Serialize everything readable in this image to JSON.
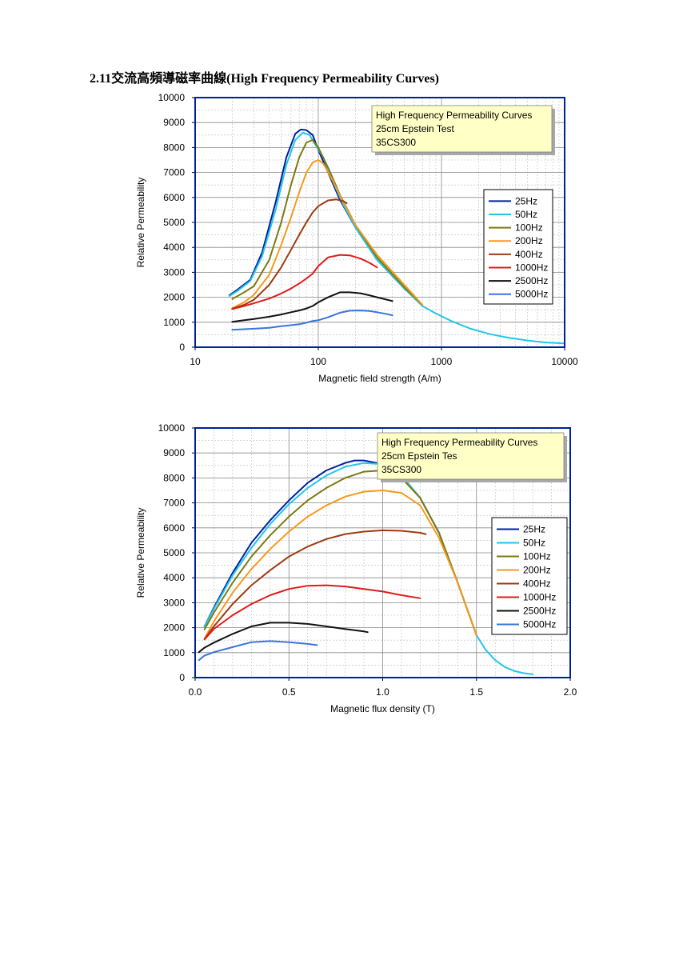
{
  "heading": "2.11交流高頻導磁率曲線(High Frequency Permeability Curves)",
  "colors": {
    "25Hz": "#00209f",
    "50Hz": "#22c6e8",
    "100Hz": "#7b7b12",
    "200Hz": "#f59a1d",
    "400Hz": "#9b3b10",
    "1000Hz": "#e01b1b",
    "2500Hz": "#111111",
    "5000Hz": "#3a74e0",
    "frame": "#00209f",
    "note_bg": "#ffffc6",
    "note_shadow": "#a8a8a8"
  },
  "chart_data": [
    {
      "type": "line",
      "note": [
        "High Frequency Permeability Curves",
        "25cm Epstein Test",
        "35CS300"
      ],
      "xlabel": "Magnetic field strength (A/m)",
      "ylabel": "Relative Permeability",
      "xscale": "log",
      "xlim": [
        10,
        10000
      ],
      "ylim": [
        0,
        10000
      ],
      "xticks": [
        10,
        100,
        1000,
        10000
      ],
      "yticks": [
        0,
        1000,
        2000,
        3000,
        4000,
        5000,
        6000,
        7000,
        8000,
        9000,
        10000
      ],
      "grid": true,
      "legend_position": "right",
      "series": [
        {
          "name": "25Hz",
          "x": [
            19,
            22,
            28,
            35,
            45,
            55,
            65,
            72,
            80,
            90,
            100,
            120,
            150,
            200,
            300,
            500,
            700
          ],
          "y": [
            2080,
            2300,
            2700,
            3800,
            5800,
            7600,
            8550,
            8720,
            8700,
            8500,
            7900,
            7000,
            5900,
            4800,
            3500,
            2350,
            1700
          ]
        },
        {
          "name": "50Hz",
          "x": [
            19,
            22,
            28,
            35,
            45,
            55,
            65,
            75,
            85,
            95,
            110,
            130,
            160,
            200,
            300,
            500,
            700,
            900,
            1200,
            1700,
            2500,
            3500,
            5000,
            7000,
            10000
          ],
          "y": [
            2050,
            2250,
            2650,
            3650,
            5500,
            7300,
            8300,
            8600,
            8500,
            8100,
            7600,
            6700,
            5700,
            4800,
            3500,
            2350,
            1650,
            1350,
            1050,
            750,
            520,
            380,
            270,
            190,
            150
          ]
        },
        {
          "name": "100Hz",
          "x": [
            20,
            25,
            30,
            40,
            50,
            60,
            70,
            80,
            90,
            100,
            120,
            150,
            200,
            300,
            500,
            700
          ],
          "y": [
            1930,
            2200,
            2450,
            3500,
            5000,
            6500,
            7600,
            8200,
            8300,
            8000,
            7200,
            6100,
            4900,
            3600,
            2400,
            1700
          ]
        },
        {
          "name": "200Hz",
          "x": [
            20,
            25,
            30,
            40,
            50,
            60,
            70,
            80,
            90,
            100,
            110,
            130,
            160,
            200,
            300,
            500,
            700
          ],
          "y": [
            1560,
            1800,
            2100,
            2900,
            4100,
            5200,
            6200,
            7000,
            7400,
            7500,
            7350,
            6700,
            5800,
            4900,
            3700,
            2500,
            1700
          ]
        },
        {
          "name": "400Hz",
          "x": [
            20,
            25,
            30,
            40,
            50,
            60,
            70,
            80,
            90,
            100,
            120,
            140,
            160,
            170
          ],
          "y": [
            1540,
            1700,
            1900,
            2500,
            3200,
            3900,
            4500,
            5000,
            5400,
            5650,
            5880,
            5920,
            5850,
            5770
          ]
        },
        {
          "name": "1000Hz",
          "x": [
            20,
            25,
            30,
            40,
            50,
            60,
            70,
            80,
            90,
            100,
            120,
            150,
            180,
            220,
            260,
            300
          ],
          "y": [
            1530,
            1650,
            1760,
            1950,
            2150,
            2350,
            2550,
            2750,
            2950,
            3250,
            3600,
            3700,
            3680,
            3550,
            3380,
            3200
          ]
        },
        {
          "name": "2500Hz",
          "x": [
            20,
            25,
            30,
            40,
            50,
            60,
            70,
            80,
            90,
            100,
            120,
            150,
            180,
            220,
            260,
            300,
            350,
            400
          ],
          "y": [
            1020,
            1080,
            1130,
            1220,
            1310,
            1400,
            1470,
            1550,
            1650,
            1800,
            2000,
            2200,
            2200,
            2160,
            2080,
            2000,
            1920,
            1850
          ]
        },
        {
          "name": "5000Hz",
          "x": [
            20,
            25,
            30,
            40,
            50,
            60,
            70,
            80,
            90,
            100,
            120,
            150,
            180,
            220,
            260,
            300,
            350,
            400
          ],
          "y": [
            700,
            720,
            740,
            780,
            840,
            880,
            920,
            980,
            1050,
            1080,
            1200,
            1380,
            1460,
            1470,
            1450,
            1400,
            1340,
            1280
          ]
        }
      ]
    },
    {
      "type": "line",
      "note": [
        "High Frequency Permeability Curves",
        "25cm Epstein Tes",
        "35CS300"
      ],
      "xlabel": "Magnetic flux density (T)",
      "ylabel": "Relative Permeability",
      "xlim": [
        0,
        2
      ],
      "ylim": [
        0,
        10000
      ],
      "xticks": [
        "0.0",
        "0.5",
        "1.0",
        "1.5",
        "2.0"
      ],
      "yticks": [
        0,
        1000,
        2000,
        3000,
        4000,
        5000,
        6000,
        7000,
        8000,
        9000,
        10000
      ],
      "grid": true,
      "legend_position": "right",
      "series": [
        {
          "name": "25Hz",
          "x": [
            0.05,
            0.1,
            0.2,
            0.3,
            0.4,
            0.5,
            0.6,
            0.7,
            0.8,
            0.85,
            0.9,
            1.0,
            1.1,
            1.2,
            1.3,
            1.4,
            1.5
          ],
          "y": [
            2050,
            2800,
            4200,
            5400,
            6300,
            7100,
            7800,
            8300,
            8600,
            8700,
            8700,
            8550,
            8100,
            7200,
            5800,
            3800,
            1700
          ]
        },
        {
          "name": "50Hz",
          "x": [
            0.05,
            0.1,
            0.2,
            0.3,
            0.4,
            0.5,
            0.6,
            0.7,
            0.8,
            0.9,
            1.0,
            1.1,
            1.2,
            1.3,
            1.4,
            1.5,
            1.55,
            1.6,
            1.65,
            1.7,
            1.75,
            1.8
          ],
          "y": [
            2050,
            2750,
            4100,
            5200,
            6150,
            6950,
            7600,
            8100,
            8450,
            8600,
            8550,
            8100,
            7200,
            5800,
            3800,
            1700,
            1100,
            700,
            430,
            270,
            180,
            130
          ]
        },
        {
          "name": "100Hz",
          "x": [
            0.05,
            0.1,
            0.2,
            0.3,
            0.4,
            0.5,
            0.6,
            0.7,
            0.8,
            0.9,
            1.0,
            1.1,
            1.2,
            1.3,
            1.4,
            1.5
          ],
          "y": [
            1930,
            2600,
            3800,
            4850,
            5700,
            6450,
            7100,
            7600,
            8000,
            8250,
            8300,
            8000,
            7200,
            5800,
            3800,
            1700
          ]
        },
        {
          "name": "200Hz",
          "x": [
            0.05,
            0.1,
            0.2,
            0.3,
            0.4,
            0.5,
            0.6,
            0.7,
            0.8,
            0.9,
            1.0,
            1.1,
            1.2,
            1.3,
            1.4,
            1.5
          ],
          "y": [
            1560,
            2250,
            3400,
            4350,
            5150,
            5850,
            6450,
            6900,
            7250,
            7450,
            7500,
            7400,
            6900,
            5600,
            3800,
            1700
          ]
        },
        {
          "name": "400Hz",
          "x": [
            0.05,
            0.1,
            0.2,
            0.3,
            0.4,
            0.5,
            0.6,
            0.7,
            0.8,
            0.9,
            1.0,
            1.1,
            1.2,
            1.23
          ],
          "y": [
            1540,
            2050,
            2950,
            3700,
            4300,
            4850,
            5250,
            5550,
            5750,
            5850,
            5900,
            5880,
            5800,
            5750
          ]
        },
        {
          "name": "1000Hz",
          "x": [
            0.05,
            0.1,
            0.2,
            0.3,
            0.4,
            0.5,
            0.6,
            0.7,
            0.8,
            0.9,
            1.0,
            1.1,
            1.2
          ],
          "y": [
            1530,
            1950,
            2500,
            2950,
            3300,
            3550,
            3680,
            3700,
            3650,
            3550,
            3450,
            3300,
            3180
          ]
        },
        {
          "name": "2500Hz",
          "x": [
            0.02,
            0.05,
            0.1,
            0.2,
            0.3,
            0.4,
            0.5,
            0.6,
            0.7,
            0.8,
            0.9,
            0.92
          ],
          "y": [
            1020,
            1200,
            1400,
            1750,
            2050,
            2200,
            2200,
            2150,
            2050,
            1950,
            1850,
            1820
          ]
        },
        {
          "name": "5000Hz",
          "x": [
            0.02,
            0.05,
            0.1,
            0.2,
            0.3,
            0.4,
            0.5,
            0.6,
            0.65
          ],
          "y": [
            700,
            880,
            1020,
            1220,
            1420,
            1460,
            1420,
            1350,
            1300
          ]
        }
      ]
    }
  ]
}
